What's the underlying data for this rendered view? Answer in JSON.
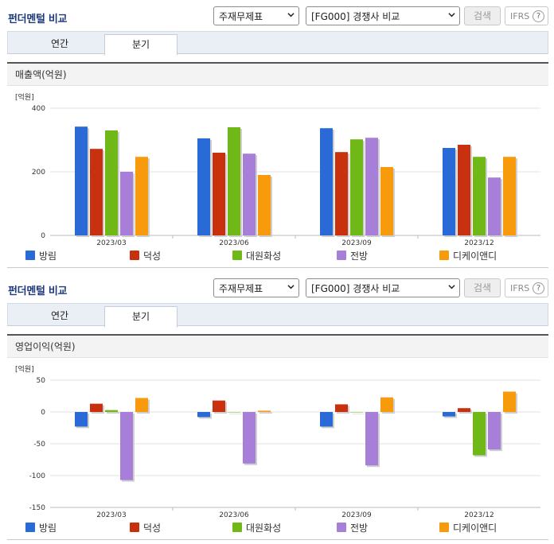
{
  "panels": [
    {
      "title": "펀더멘털 비교",
      "select_item": "주재무제표",
      "select_peer": "[FG000] 경쟁사 비교",
      "search_label": "검색",
      "ifrs_label": "IFRS",
      "ifrs_help": "?",
      "tabs": [
        {
          "label": "연간",
          "active": false
        },
        {
          "label": "분기",
          "active": true
        }
      ],
      "chart_title": "매출액(억원)"
    },
    {
      "title": "펀더멘털 비교",
      "select_item": "주재무제표",
      "select_peer": "[FG000] 경쟁사 비교",
      "search_label": "검색",
      "ifrs_label": "IFRS",
      "ifrs_help": "?",
      "tabs": [
        {
          "label": "연간",
          "active": false
        },
        {
          "label": "분기",
          "active": true
        }
      ],
      "chart_title": "영업이익(억원)"
    }
  ],
  "colors": {
    "방림": "#2a6ad6",
    "덕성": "#c9310e",
    "대원화성": "#6fb817",
    "전방": "#a77fd9",
    "디케이앤디": "#f79a0c"
  },
  "chart_data": [
    {
      "type": "bar",
      "title": "매출액(억원)",
      "unit_label": "[억원]",
      "categories": [
        "2023/03",
        "2023/06",
        "2023/09",
        "2023/12"
      ],
      "ylim": [
        0,
        400
      ],
      "yticks": [
        "400",
        "200",
        "0"
      ],
      "ytick_values": [
        400,
        200,
        0
      ],
      "grid": true,
      "legend": "bottom",
      "series": [
        {
          "name": "방림",
          "values": [
            342,
            305,
            337,
            275
          ]
        },
        {
          "name": "덕성",
          "values": [
            272,
            260,
            262,
            285
          ]
        },
        {
          "name": "대원화성",
          "values": [
            330,
            340,
            302,
            247
          ]
        },
        {
          "name": "전방",
          "values": [
            200,
            257,
            307,
            182
          ]
        },
        {
          "name": "디케이앤디",
          "values": [
            247,
            190,
            215,
            247
          ]
        }
      ]
    },
    {
      "type": "bar",
      "title": "영업이익(억원)",
      "unit_label": "[억원]",
      "categories": [
        "2023/03",
        "2023/06",
        "2023/09",
        "2023/12"
      ],
      "ylim": [
        -150,
        50
      ],
      "yticks": [
        "50",
        "0",
        "-50",
        "-100",
        "-150"
      ],
      "ytick_values": [
        50,
        0,
        -50,
        -100,
        -150
      ],
      "grid": true,
      "legend": "bottom",
      "series": [
        {
          "name": "방림",
          "values": [
            -23,
            -8,
            -23,
            -7
          ]
        },
        {
          "name": "덕성",
          "values": [
            13,
            18,
            12,
            6
          ]
        },
        {
          "name": "대원화성",
          "values": [
            3,
            0,
            0,
            -68
          ]
        },
        {
          "name": "전방",
          "values": [
            -107,
            -81,
            -84,
            -59
          ]
        },
        {
          "name": "디케이앤디",
          "values": [
            22,
            2,
            23,
            32
          ]
        }
      ]
    }
  ]
}
